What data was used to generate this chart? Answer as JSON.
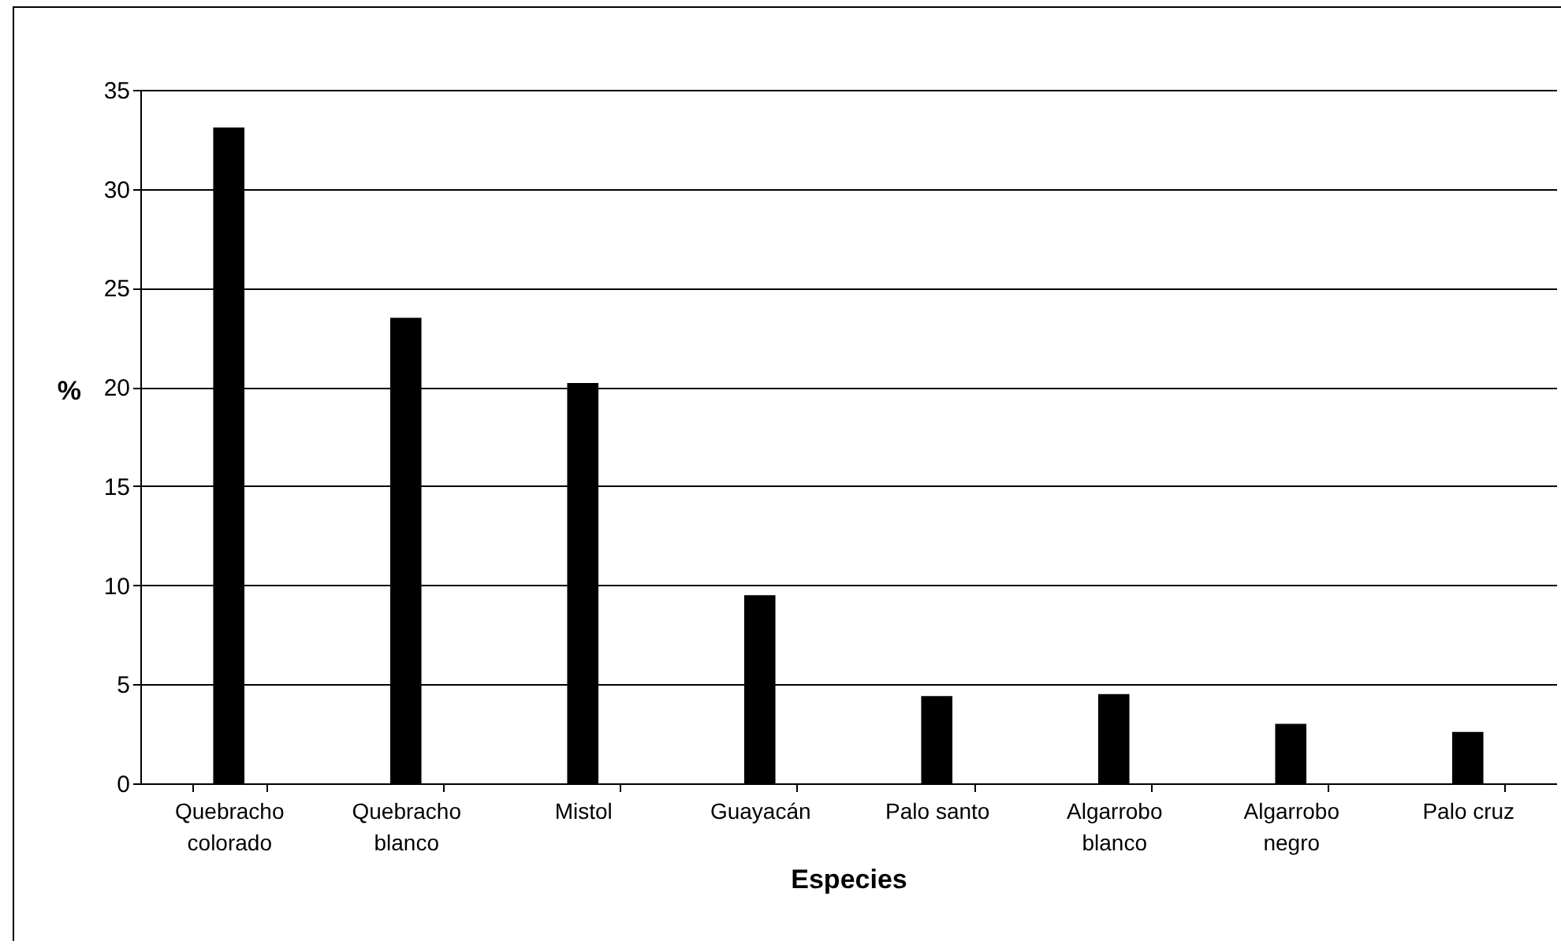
{
  "chart_data": {
    "type": "bar",
    "xlabel": "Especies",
    "ylabel": "%",
    "categories": [
      "Quebracho colorado",
      "Quebracho blanco",
      "Mistol",
      "Guayacán",
      "Palo santo",
      "Algarrobo blanco",
      "Algarrobo negro",
      "Palo cruz"
    ],
    "values": [
      33.1,
      23.5,
      20.2,
      9.5,
      4.4,
      4.5,
      3.0,
      2.6
    ],
    "color": "#000000",
    "ylim": [
      0,
      35
    ],
    "yticks": [
      0,
      5,
      10,
      15,
      20,
      25,
      30,
      35
    ],
    "grid": "y"
  }
}
